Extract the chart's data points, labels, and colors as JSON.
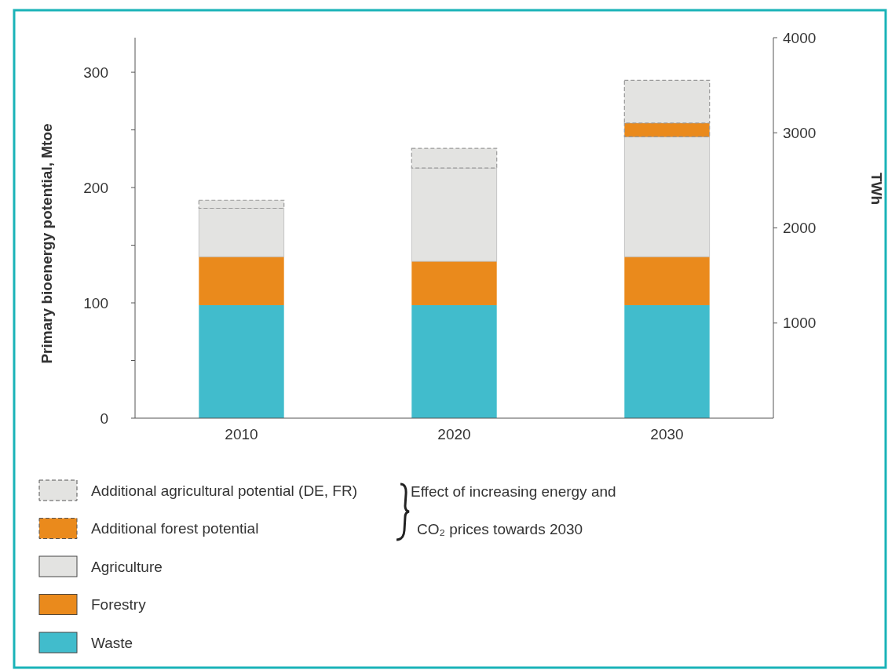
{
  "chart_data": {
    "type": "bar",
    "stacked": true,
    "categories": [
      "2010",
      "2020",
      "2030"
    ],
    "series": [
      {
        "name": "Waste",
        "color": "#41bccc",
        "values": [
          98,
          98,
          98
        ]
      },
      {
        "name": "Forestry",
        "color": "#ea8a1c",
        "values": [
          42,
          38,
          42
        ]
      },
      {
        "name": "Agriculture",
        "color": "#e3e3e1",
        "values": [
          42,
          81,
          104
        ]
      },
      {
        "name": "Additional forest potential",
        "color": "#ea8a1c",
        "values": [
          null,
          null,
          12
        ],
        "line_style": "dashed"
      },
      {
        "name": "Additional agricultural potential (DE, FR)",
        "color": "#e3e3e1",
        "values": [
          7,
          17,
          37
        ],
        "line_style": "dashed"
      }
    ],
    "ylabel": "Primary bioenergy potential, Mtoe",
    "y2label": "TWh",
    "ylim": [
      0,
      330
    ],
    "yticks": [
      0,
      {
        "value": 50,
        "label": null
      },
      100,
      {
        "value": 150,
        "label": null
      },
      200,
      {
        "value": 250,
        "label": null
      },
      300
    ],
    "y2lim": [
      0,
      4000
    ],
    "y2ticks": [
      1000,
      2000,
      3000,
      4000
    ],
    "legend": "bottom left",
    "grid": false,
    "annotations": [
      "Effect of increasing energy and",
      "CO₂ prices towards 2030"
    ]
  }
}
